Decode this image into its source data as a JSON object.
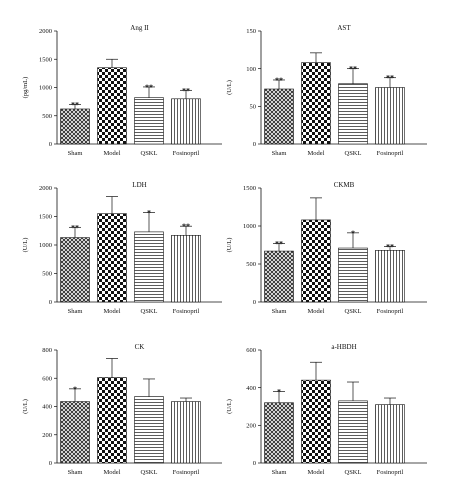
{
  "categories": [
    "Sham",
    "Model",
    "QSKL",
    "Fosinopril"
  ],
  "patterns": [
    "crosshatch",
    "checker",
    "horizontal",
    "vertical"
  ],
  "chart_data": [
    {
      "type": "bar",
      "title": "Ang II",
      "ylabel": "(pg/mL)",
      "ylim": [
        0,
        2000
      ],
      "yticks": [
        0,
        500,
        1000,
        1500,
        2000
      ],
      "categories": [
        "Sham",
        "Model",
        "QSKL",
        "Fosinopril"
      ],
      "values": [
        620,
        1350,
        820,
        800
      ],
      "errors": [
        80,
        150,
        190,
        150
      ],
      "significance": [
        "**",
        "",
        "**",
        "**"
      ]
    },
    {
      "type": "bar",
      "title": "AST",
      "ylabel": "(U/L)",
      "ylim": [
        0,
        150
      ],
      "yticks": [
        0,
        50,
        100,
        150
      ],
      "categories": [
        "Sham",
        "Model",
        "QSKL",
        "Fosinopril"
      ],
      "values": [
        73,
        108,
        80,
        75
      ],
      "errors": [
        12,
        13,
        20,
        13
      ],
      "significance": [
        "**",
        "",
        "**",
        "**"
      ]
    },
    {
      "type": "bar",
      "title": "LDH",
      "ylabel": "(U/L)",
      "ylim": [
        0,
        2000
      ],
      "yticks": [
        0,
        500,
        1000,
        1500,
        2000
      ],
      "categories": [
        "Sham",
        "Model",
        "QSKL",
        "Fosinopril"
      ],
      "values": [
        1130,
        1550,
        1230,
        1170
      ],
      "errors": [
        180,
        300,
        340,
        160
      ],
      "significance": [
        "**",
        "",
        "*",
        "**"
      ]
    },
    {
      "type": "bar",
      "title": "CKMB",
      "ylabel": "(U/L)",
      "ylim": [
        0,
        1500
      ],
      "yticks": [
        0,
        500,
        1000,
        1500
      ],
      "categories": [
        "Sham",
        "Model",
        "QSKL",
        "Fosinopril"
      ],
      "values": [
        670,
        1080,
        710,
        680
      ],
      "errors": [
        100,
        290,
        200,
        50
      ],
      "significance": [
        "**",
        "",
        "*",
        "**"
      ]
    },
    {
      "type": "bar",
      "title": "CK",
      "ylabel": "(U/L)",
      "ylim": [
        0,
        800
      ],
      "yticks": [
        0,
        200,
        400,
        600,
        800
      ],
      "categories": [
        "Sham",
        "Model",
        "QSKL",
        "Fosinopril"
      ],
      "values": [
        435,
        605,
        470,
        435
      ],
      "errors": [
        90,
        135,
        125,
        25
      ],
      "significance": [
        "*",
        "",
        "",
        ""
      ]
    },
    {
      "type": "bar",
      "title": "a-HBDH",
      "ylabel": "(U/L)",
      "ylim": [
        0,
        600
      ],
      "yticks": [
        0,
        200,
        400,
        600
      ],
      "categories": [
        "Sham",
        "Model",
        "QSKL",
        "Fosinopril"
      ],
      "values": [
        320,
        440,
        330,
        310
      ],
      "errors": [
        60,
        95,
        100,
        35
      ],
      "significance": [
        "*",
        "",
        "",
        ""
      ]
    }
  ]
}
